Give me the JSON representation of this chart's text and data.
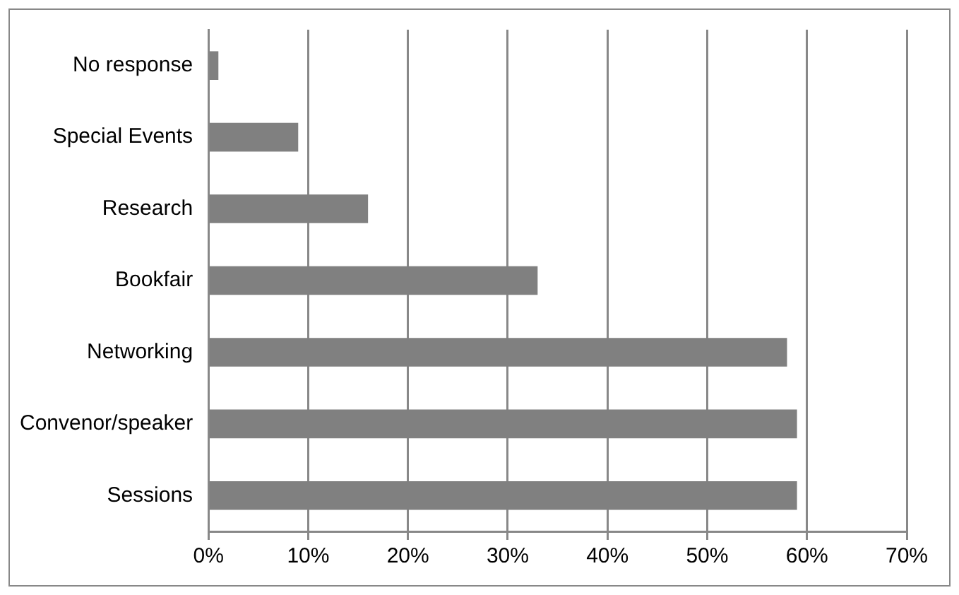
{
  "chart_data": {
    "type": "bar",
    "orientation": "horizontal",
    "categories": [
      "No response",
      "Special Events",
      "Research",
      "Bookfair",
      "Networking",
      "Convenor/speaker",
      "Sessions"
    ],
    "values": [
      1,
      9,
      16,
      33,
      58,
      59,
      59
    ],
    "color": "#808080",
    "xlim": [
      0,
      70
    ],
    "xticks": [
      {
        "value": 0,
        "label": "0%"
      },
      {
        "value": 10,
        "label": "10%"
      },
      {
        "value": 20,
        "label": "20%"
      },
      {
        "value": 30,
        "label": "30%"
      },
      {
        "value": 40,
        "label": "40%"
      },
      {
        "value": 50,
        "label": "50%"
      },
      {
        "value": 60,
        "label": "60%"
      },
      {
        "value": 70,
        "label": "70%"
      }
    ],
    "grid": "x",
    "legend": false
  }
}
